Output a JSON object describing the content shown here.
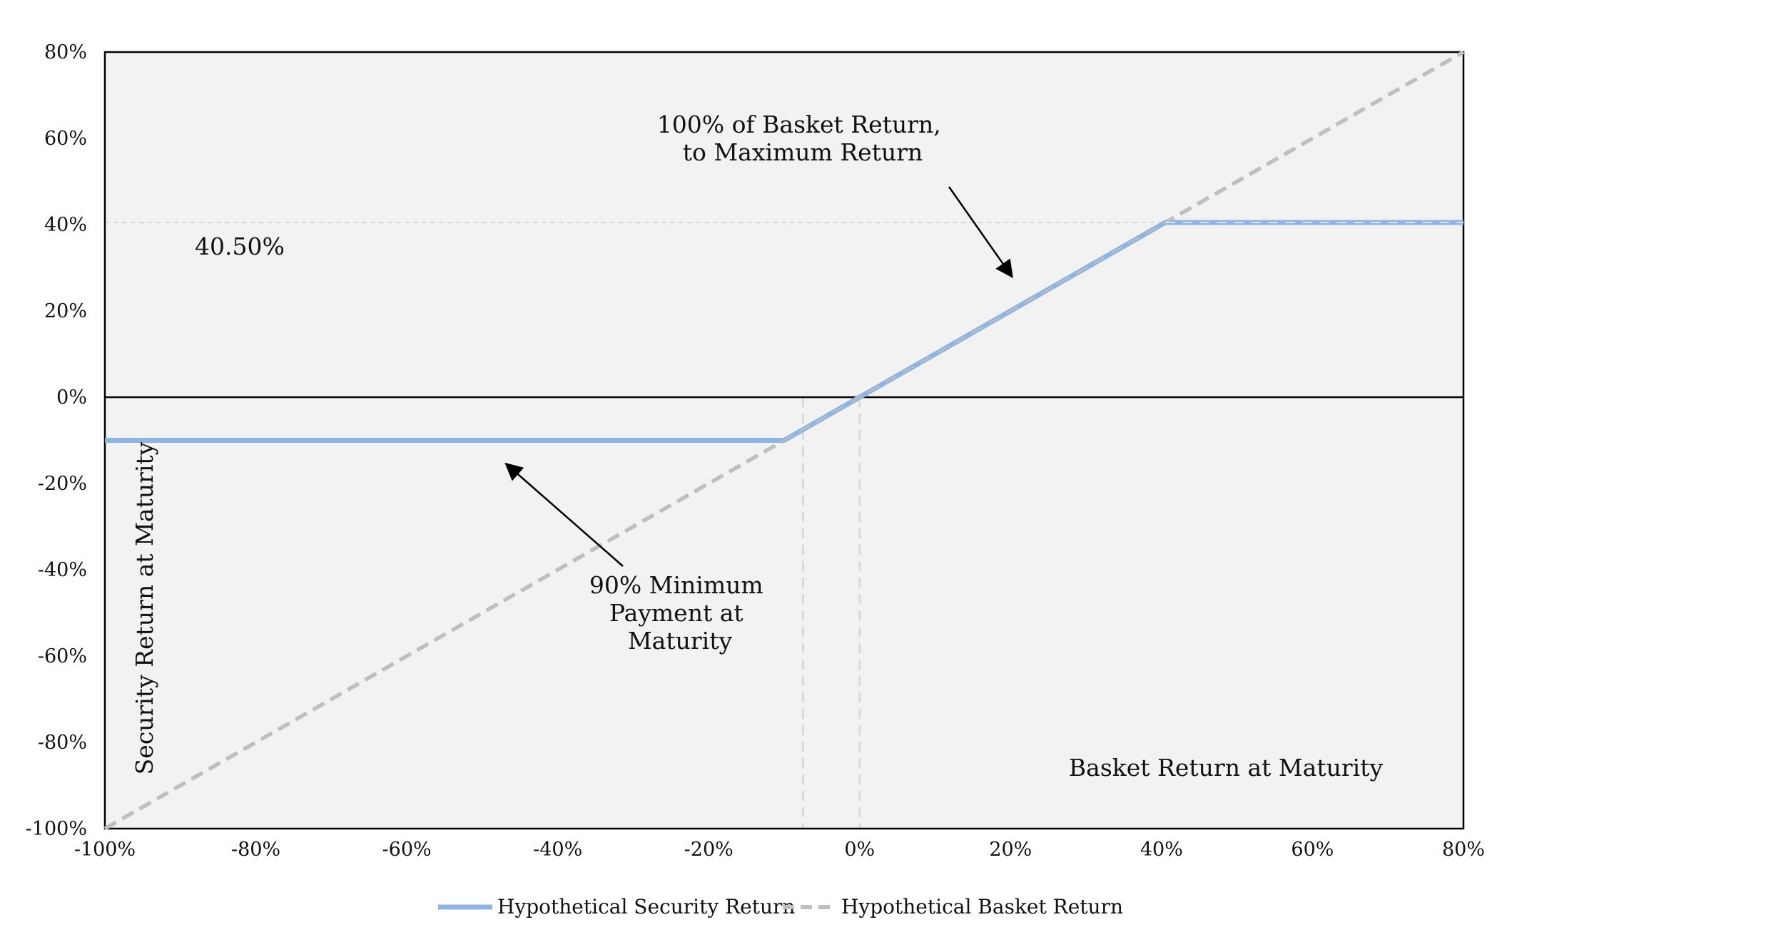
{
  "chart_data": {
    "type": "line",
    "xlabel": "Basket Return at Maturity",
    "ylabel": "Security Return at Maturity",
    "xlim": [
      -100,
      80
    ],
    "ylim": [
      -100,
      80
    ],
    "x_ticks": [
      "-100%",
      "-80%",
      "-60%",
      "-40%",
      "-20%",
      "0%",
      "20%",
      "40%",
      "60%",
      "80%"
    ],
    "y_ticks": [
      "80%",
      "60%",
      "40%",
      "20%",
      "0%",
      "-20%",
      "-40%",
      "-60%",
      "-80%",
      "-100%"
    ],
    "series": [
      {
        "name": "Hypothetical Security Return",
        "color": "#8EB4E3",
        "style": "solid",
        "x": [
          -100,
          -10,
          0,
          40.5,
          80
        ],
        "y": [
          -10,
          -10,
          0,
          40.5,
          40.5
        ]
      },
      {
        "name": "Hypothetical Basket Return",
        "color": "#BFBFBF",
        "style": "dashed",
        "x": [
          -100,
          80
        ],
        "y": [
          -100,
          80
        ]
      }
    ],
    "reference_lines": {
      "horizontal_y": 40.5,
      "vertical_x": [
        -7.5,
        0
      ]
    },
    "annotations": {
      "cap_value": "40.50%",
      "cap_label": [
        "100% of Basket Return,",
        "to Maximum Return"
      ],
      "floor_label": [
        "90% Minimum",
        "Payment at",
        "Maturity"
      ]
    },
    "legend_position": "bottom",
    "grid": false,
    "plot_background": "#F2F2F2"
  }
}
